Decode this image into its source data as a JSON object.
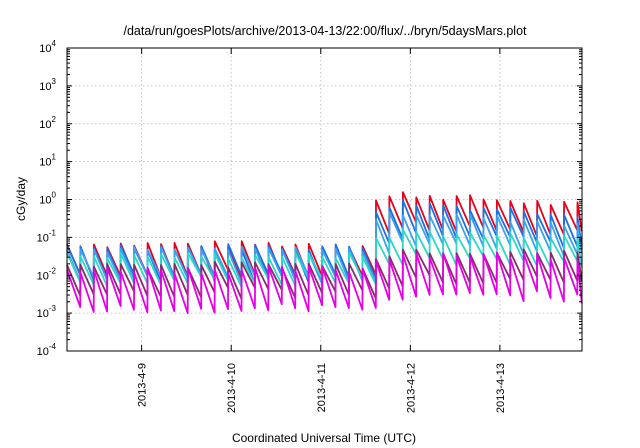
{
  "chart_data": {
    "type": "line",
    "title": "/data/run/goesPlots/archive/2013-04-13/22:00/flux/../bryn/5daysMars.plot",
    "xlabel": "Coordinated Universal Time (UTC)",
    "ylabel": "cGy/day",
    "yscale": "log",
    "ylim": [
      0.0001,
      10000
    ],
    "xlim": [
      "2013-04-08 04:00",
      "2013-04-13 22:00"
    ],
    "grid": true,
    "legend": "none",
    "x_ticks": [
      "2013-4-9",
      "2013-4-10",
      "2013-4-11",
      "2013-4-12",
      "2013-4-13"
    ],
    "y_ticks": [
      {
        "base": "10",
        "exp": "-4"
      },
      {
        "base": "10",
        "exp": "-3"
      },
      {
        "base": "10",
        "exp": "-2"
      },
      {
        "base": "10",
        "exp": "-1"
      },
      {
        "base": "10",
        "exp": "0"
      },
      {
        "base": "10",
        "exp": "1"
      },
      {
        "base": "10",
        "exp": "2"
      },
      {
        "base": "10",
        "exp": "3"
      },
      {
        "base": "10",
        "exp": "4"
      }
    ],
    "sawtooth_period_hours": 3.6,
    "step_event": "2013-04-11 12:00",
    "series": [
      {
        "color": "#e8001c",
        "peak_before": 0.07,
        "peak_after": 1.5,
        "ratio": 0.15,
        "decay": 0.35
      },
      {
        "color": "#1e6fe0",
        "peak_before": 0.06,
        "peak_after": 0.9,
        "ratio": 0.16,
        "decay": 0.35
      },
      {
        "color": "#3aa0f0",
        "peak_before": 0.05,
        "peak_after": 0.5,
        "ratio": 0.16,
        "decay": 0.35
      },
      {
        "color": "#2ed6c8",
        "peak_before": 0.035,
        "peak_after": 0.15,
        "ratio": 0.2,
        "decay": 0.2
      },
      {
        "color": "#8a2a6c",
        "peak_before": 0.02,
        "peak_after": 0.05,
        "ratio": 0.18,
        "decay": 0.1
      },
      {
        "color": "#e600e6",
        "peak_before": 0.015,
        "peak_after": 0.04,
        "ratio": 0.09,
        "decay": 0.1
      }
    ]
  }
}
